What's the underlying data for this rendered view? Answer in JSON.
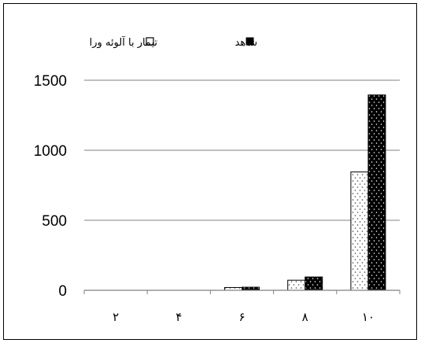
{
  "chart_data": {
    "type": "bar",
    "title": "",
    "xlabel": "",
    "ylabel": "",
    "categories": [
      "۲",
      "۴",
      "۶",
      "۸",
      "۱۰"
    ],
    "series": [
      {
        "name": "تیمار با آلوئه ورا",
        "values": [
          0,
          0,
          20,
          72,
          845
        ],
        "color": "#ffffff",
        "pattern": "dots-on-white"
      },
      {
        "name": "شاهد",
        "values": [
          0,
          0,
          22,
          95,
          1395
        ],
        "color": "#000000",
        "pattern": "dots-on-black"
      }
    ],
    "ylim": [
      0,
      1500
    ],
    "yticks": [
      0,
      500,
      1000,
      1500
    ],
    "grid": true,
    "legend_position": "top"
  }
}
